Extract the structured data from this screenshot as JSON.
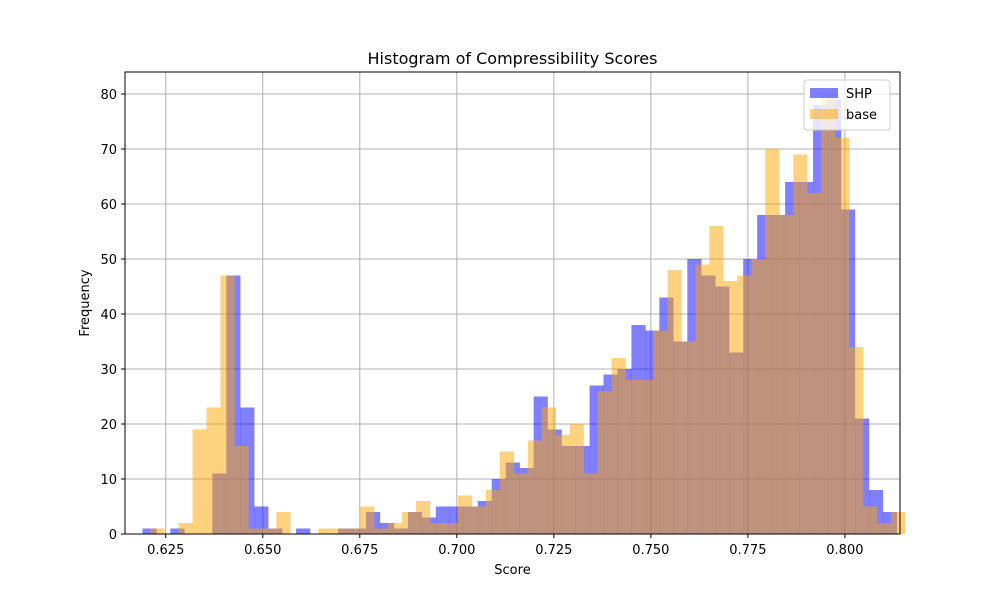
{
  "chart_data": {
    "type": "bar",
    "title": "Histogram of Compressibility Scores",
    "xlabel": "Score",
    "ylabel": "Frequency",
    "xlim": [
      0.6145,
      0.8142
    ],
    "ylim": [
      0,
      84
    ],
    "xticks": [
      0.625,
      0.65,
      0.675,
      0.7,
      0.725,
      0.75,
      0.775,
      0.8
    ],
    "xtick_labels": [
      "0.625",
      "0.650",
      "0.675",
      "0.700",
      "0.725",
      "0.750",
      "0.775",
      "0.800"
    ],
    "yticks": [
      0,
      10,
      20,
      30,
      40,
      50,
      60,
      70,
      80
    ],
    "ytick_labels": [
      "0",
      "10",
      "20",
      "30",
      "40",
      "50",
      "60",
      "70",
      "80"
    ],
    "grid": true,
    "legend_position": "top-right",
    "series": [
      {
        "name": "SHP",
        "color": "#0000ff",
        "opacity": 0.5,
        "bin_start": 0.619,
        "bin_width": 0.0036,
        "values": [
          1,
          0,
          1,
          0,
          0,
          11,
          47,
          23,
          5,
          1,
          0,
          1,
          0,
          0,
          1,
          1,
          4,
          2,
          1,
          4,
          3,
          5,
          5,
          5,
          6,
          10,
          13,
          12,
          25,
          19,
          16,
          16,
          27,
          29,
          30,
          38,
          37,
          43,
          35,
          50,
          47,
          45,
          33,
          50,
          58,
          58,
          64,
          64,
          78,
          79,
          59,
          21,
          8,
          4,
          0,
          0
        ]
      },
      {
        "name": "base",
        "color": "#ffa500",
        "opacity": 0.5,
        "bin_start": 0.6211,
        "bin_width": 0.0036,
        "values": [
          1,
          0,
          2,
          19,
          23,
          47,
          16,
          1,
          1,
          4,
          0,
          0,
          1,
          1,
          1,
          5,
          1,
          2,
          4,
          6,
          2,
          2,
          7,
          5,
          8,
          15,
          11,
          17,
          23,
          18,
          20,
          11,
          26,
          32,
          28,
          28,
          37,
          48,
          35,
          49,
          56,
          46,
          47,
          50,
          70,
          58,
          69,
          62,
          80,
          72,
          34,
          5,
          2,
          4
        ]
      }
    ]
  }
}
